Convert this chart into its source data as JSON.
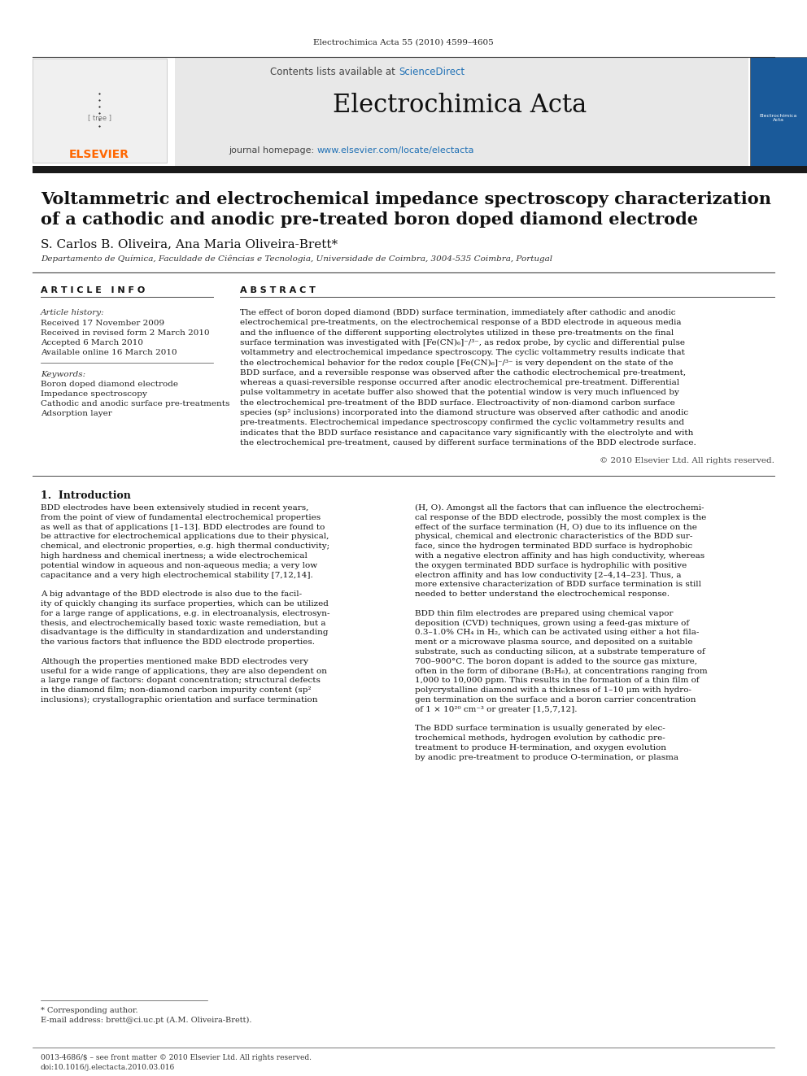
{
  "page_width": 9.92,
  "page_height": 13.23,
  "bg_color": "#ffffff",
  "journal_ref": "Electrochimica Acta 55 (2010) 4599–4605",
  "journal_name": "Electrochimica Acta",
  "contents_text": "Contents lists available at ScienceDirect",
  "journal_homepage": "journal homepage: www.elsevier.com/locate/electacta",
  "sciencedirect_color": "#2171b5",
  "homepage_link_color": "#2171b5",
  "elsevier_color": "#ff6600",
  "header_bg": "#e8e8e8",
  "paper_title_line1": "Voltammetric and electrochemical impedance spectroscopy characterization",
  "paper_title_line2": "of a cathodic and anodic pre-treated boron doped diamond electrode",
  "authors": "S. Carlos B. Oliveira, Ana Maria Oliveira-Brett*",
  "affiliation": "Departamento de Química, Faculdade de Ciências e Tecnologia, Universidade de Coimbra, 3004-535 Coimbra, Portugal",
  "article_info_header": "A R T I C L E   I N F O",
  "abstract_header": "A B S T R A C T",
  "article_history_label": "Article history:",
  "received1": "Received 17 November 2009",
  "received2": "Received in revised form 2 March 2010",
  "accepted": "Accepted 6 March 2010",
  "available": "Available online 16 March 2010",
  "keywords_label": "Keywords:",
  "keyword1": "Boron doped diamond electrode",
  "keyword2": "Impedance spectroscopy",
  "keyword3": "Cathodic and anodic surface pre-treatments",
  "keyword4": "Adsorption layer",
  "copyright_text": "© 2010 Elsevier Ltd. All rights reserved.",
  "section1_header": "1.  Introduction",
  "footnote_star": "* Corresponding author.",
  "footnote_email": "E-mail address: brett@ci.uc.pt (A.M. Oliveira-Brett).",
  "bottom_issn": "0013-4686/$ – see front matter © 2010 Elsevier Ltd. All rights reserved.",
  "bottom_doi": "doi:10.1016/j.electacta.2010.03.016",
  "abstract_lines": [
    "The effect of boron doped diamond (BDD) surface termination, immediately after cathodic and anodic",
    "electrochemical pre-treatments, on the electrochemical response of a BDD electrode in aqueous media",
    "and the influence of the different supporting electrolytes utilized in these pre-treatments on the final",
    "surface termination was investigated with [Fe(CN)₆]⁻/³⁻, as redox probe, by cyclic and differential pulse",
    "voltammetry and electrochemical impedance spectroscopy. The cyclic voltammetry results indicate that",
    "the electrochemical behavior for the redox couple [Fe(CN)₆]⁻/³⁻ is very dependent on the state of the",
    "BDD surface, and a reversible response was observed after the cathodic electrochemical pre-treatment,",
    "whereas a quasi-reversible response occurred after anodic electrochemical pre-treatment. Differential",
    "pulse voltammetry in acetate buffer also showed that the potential window is very much influenced by",
    "the electrochemical pre-treatment of the BDD surface. Electroactivity of non-diamond carbon surface",
    "species (sp² inclusions) incorporated into the diamond structure was observed after cathodic and anodic",
    "pre-treatments. Electrochemical impedance spectroscopy confirmed the cyclic voltammetry results and",
    "indicates that the BDD surface resistance and capacitance vary significantly with the electrolyte and with",
    "the electrochemical pre-treatment, caused by different surface terminations of the BDD electrode surface."
  ],
  "intro_lines_left": [
    "BDD electrodes have been extensively studied in recent years,",
    "from the point of view of fundamental electrochemical properties",
    "as well as that of applications [1–13]. BDD electrodes are found to",
    "be attractive for electrochemical applications due to their physical,",
    "chemical, and electronic properties, e.g. high thermal conductivity;",
    "high hardness and chemical inertness; a wide electrochemical",
    "potential window in aqueous and non-aqueous media; a very low",
    "capacitance and a very high electrochemical stability [7,12,14].",
    "",
    "A big advantage of the BDD electrode is also due to the facil-",
    "ity of quickly changing its surface properties, which can be utilized",
    "for a large range of applications, e.g. in electroanalysis, electrosyn-",
    "thesis, and electrochemically based toxic waste remediation, but a",
    "disadvantage is the difficulty in standardization and understanding",
    "the various factors that influence the BDD electrode properties.",
    "",
    "Although the properties mentioned make BDD electrodes very",
    "useful for a wide range of applications, they are also dependent on",
    "a large range of factors: dopant concentration; structural defects",
    "in the diamond film; non-diamond carbon impurity content (sp²",
    "inclusions); crystallographic orientation and surface termination"
  ],
  "intro_lines_right": [
    "(H, O). Amongst all the factors that can influence the electrochemi-",
    "cal response of the BDD electrode, possibly the most complex is the",
    "effect of the surface termination (H, O) due to its influence on the",
    "physical, chemical and electronic characteristics of the BDD sur-",
    "face, since the hydrogen terminated BDD surface is hydrophobic",
    "with a negative electron affinity and has high conductivity, whereas",
    "the oxygen terminated BDD surface is hydrophilic with positive",
    "electron affinity and has low conductivity [2–4,14–23]. Thus, a",
    "more extensive characterization of BDD surface termination is still",
    "needed to better understand the electrochemical response.",
    "",
    "BDD thin film electrodes are prepared using chemical vapor",
    "deposition (CVD) techniques, grown using a feed-gas mixture of",
    "0.3–1.0% CH₄ in H₂, which can be activated using either a hot fila-",
    "ment or a microwave plasma source, and deposited on a suitable",
    "substrate, such as conducting silicon, at a substrate temperature of",
    "700–900°C. The boron dopant is added to the source gas mixture,",
    "often in the form of diborane (B₂H₆), at concentrations ranging from",
    "1,000 to 10,000 ppm. This results in the formation of a thin film of",
    "polycrystalline diamond with a thickness of 1–10 μm with hydro-",
    "gen termination on the surface and a boron carrier concentration",
    "of 1 × 10²⁰ cm⁻³ or greater [1,5,7,12].",
    "",
    "The BDD surface termination is usually generated by elec-",
    "trochemical methods, hydrogen evolution by cathodic pre-",
    "treatment to produce H-termination, and oxygen evolution",
    "by anodic pre-treatment to produce O-termination, or plasma"
  ]
}
